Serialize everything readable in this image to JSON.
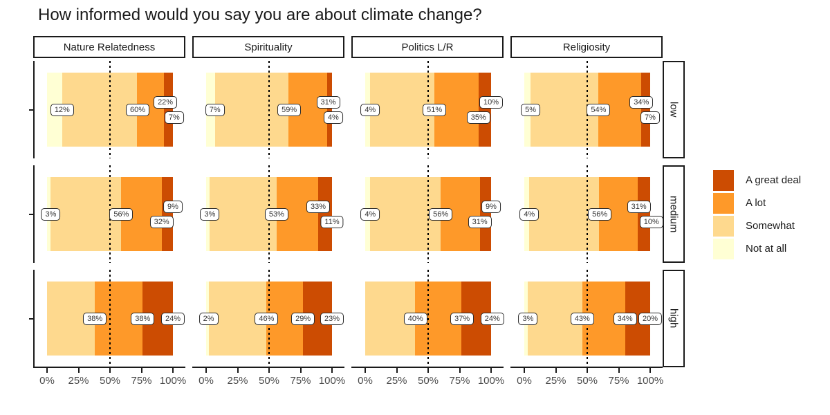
{
  "chart_data": {
    "type": "bar",
    "subtype": "horizontal-stacked-100pct-faceted",
    "title": "How informed would you say you are about climate change?",
    "col_facets": [
      "Nature Relatedness",
      "Spirituality",
      "Politics L/R",
      "Religiosity"
    ],
    "row_facets": [
      "low",
      "medium",
      "high"
    ],
    "stack_order": [
      "Not at all",
      "Somewhat",
      "A lot",
      "A great deal"
    ],
    "colors": {
      "Not at all": "#FFFFD4",
      "Somewhat": "#FED98E",
      "A lot": "#FE9929",
      "A great deal": "#CC4C02"
    },
    "legend": {
      "position": "right",
      "entries": [
        "A great deal",
        "A lot",
        "Somewhat",
        "Not at all"
      ]
    },
    "x_ticks": [
      "0%",
      "25%",
      "50%",
      "75%",
      "100%"
    ],
    "xlim": [
      0,
      100
    ],
    "reference_line_pct": 50,
    "grid": false,
    "cells": [
      {
        "row": "low",
        "col": "Nature Relatedness",
        "values": [
          12,
          60,
          22,
          7
        ],
        "label_dodge": [
          0,
          0,
          -1,
          1
        ]
      },
      {
        "row": "low",
        "col": "Spirituality",
        "values": [
          7,
          59,
          31,
          4
        ],
        "label_dodge": [
          0,
          0,
          -1,
          1
        ]
      },
      {
        "row": "low",
        "col": "Politics L/R",
        "values": [
          4,
          51,
          35,
          10
        ],
        "label_dodge": [
          0,
          0,
          1,
          -1
        ]
      },
      {
        "row": "low",
        "col": "Religiosity",
        "values": [
          5,
          54,
          34,
          7
        ],
        "label_dodge": [
          0,
          0,
          -1,
          1
        ]
      },
      {
        "row": "medium",
        "col": "Nature Relatedness",
        "values": [
          3,
          56,
          32,
          9
        ],
        "label_dodge": [
          0,
          0,
          1,
          -1
        ]
      },
      {
        "row": "medium",
        "col": "Spirituality",
        "values": [
          3,
          53,
          33,
          11
        ],
        "label_dodge": [
          0,
          0,
          -1,
          1
        ]
      },
      {
        "row": "medium",
        "col": "Politics L/R",
        "values": [
          4,
          56,
          31,
          9
        ],
        "label_dodge": [
          0,
          0,
          1,
          -1
        ]
      },
      {
        "row": "medium",
        "col": "Religiosity",
        "values": [
          4,
          56,
          31,
          10
        ],
        "label_dodge": [
          0,
          0,
          -1,
          1
        ]
      },
      {
        "row": "high",
        "col": "Nature Relatedness",
        "values": [
          0,
          38,
          38,
          24
        ],
        "label_dodge": [
          0,
          0,
          0,
          0
        ]
      },
      {
        "row": "high",
        "col": "Spirituality",
        "values": [
          2,
          46,
          29,
          23
        ],
        "label_dodge": [
          0,
          0,
          0,
          0
        ]
      },
      {
        "row": "high",
        "col": "Politics L/R",
        "values": [
          0,
          40,
          37,
          24
        ],
        "label_dodge": [
          0,
          0,
          0,
          0
        ]
      },
      {
        "row": "high",
        "col": "Religiosity",
        "values": [
          3,
          43,
          34,
          20
        ],
        "label_dodge": [
          0,
          0,
          0,
          0
        ]
      }
    ]
  }
}
